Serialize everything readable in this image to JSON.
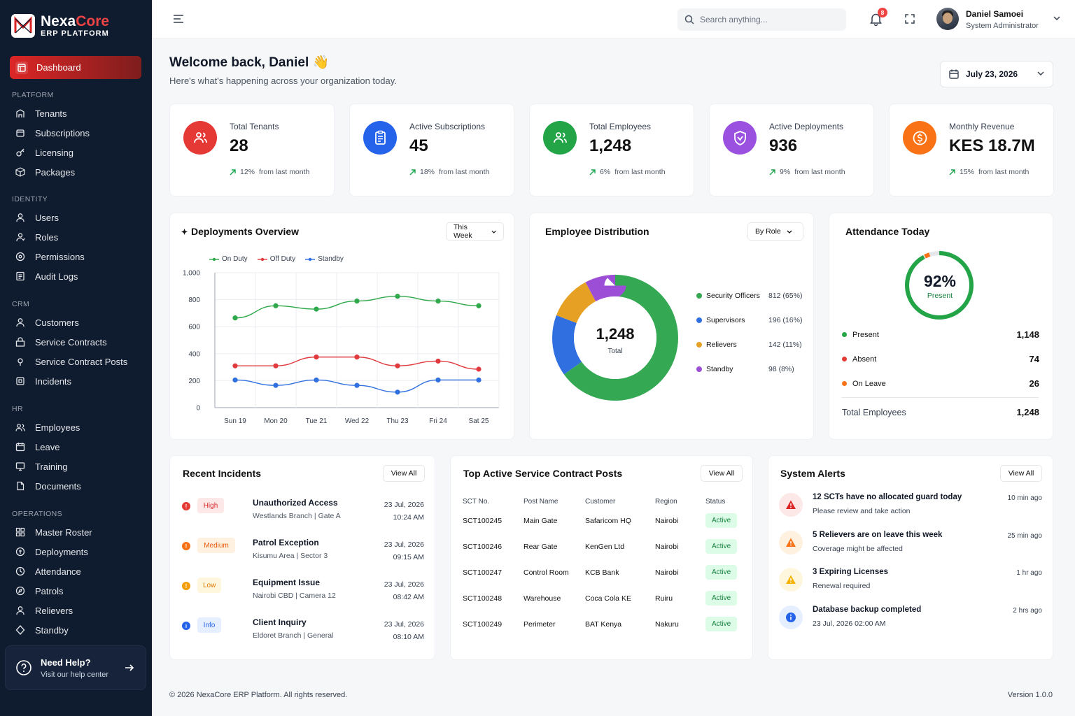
{
  "brand": {
    "name_main": "Nexa",
    "name_accent": "Core",
    "subtitle": "ERP PLATFORM"
  },
  "sidebar": {
    "active": "Dashboard",
    "sections": [
      {
        "label": "PLATFORM",
        "items": [
          "Tenants",
          "Subscriptions",
          "Licensing",
          "Packages"
        ]
      },
      {
        "label": "IDENTITY",
        "items": [
          "Users",
          "Roles",
          "Permissions",
          "Audit Logs"
        ]
      },
      {
        "label": "CRM",
        "items": [
          "Customers",
          "Service Contracts",
          "Service Contract Posts",
          "Incidents"
        ]
      },
      {
        "label": "HR",
        "items": [
          "Employees",
          "Leave",
          "Training",
          "Documents"
        ]
      },
      {
        "label": "OPERATIONS",
        "items": [
          "Master Roster",
          "Deployments",
          "Attendance",
          "Patrols",
          "Relievers",
          "Standby"
        ]
      }
    ],
    "help": {
      "title": "Need Help?",
      "subtitle": "Visit our help center"
    }
  },
  "topbar": {
    "search_placeholder": "Search anything...",
    "notifications": "8",
    "user_name": "Daniel Samoei",
    "user_role": "System Administrator"
  },
  "header": {
    "welcome": "Welcome back, Daniel 👋",
    "subtitle": "Here's what's happening across your organization today.",
    "date": "July 23, 2026"
  },
  "stats": [
    {
      "label": "Total Tenants",
      "value": "28",
      "trend": "12%",
      "trend_text": "from last month",
      "color": "#e53935"
    },
    {
      "label": "Active Subscriptions",
      "value": "45",
      "trend": "18%",
      "trend_text": "from last month",
      "color": "#2563eb"
    },
    {
      "label": "Total Employees",
      "value": "1,248",
      "trend": "6%",
      "trend_text": "from last month",
      "color": "#22a447"
    },
    {
      "label": "Active Deployments",
      "value": "936",
      "trend": "9%",
      "trend_text": "from last month",
      "color": "#9b51e0"
    },
    {
      "label": "Monthly Revenue",
      "value": "KES 18.7M",
      "trend": "15%",
      "trend_text": "from last month",
      "color": "#f97316"
    }
  ],
  "deployments": {
    "title": "Deployments Overview",
    "range": "This Week",
    "chart_data": {
      "type": "line",
      "categories": [
        "Sun 19",
        "Mon 20",
        "Tue 21",
        "Wed 22",
        "Thu 23",
        "Fri 24",
        "Sat 25"
      ],
      "series": [
        {
          "name": "On Duty",
          "color": "#2ea84a",
          "values": [
            665,
            755,
            730,
            790,
            825,
            790,
            755
          ]
        },
        {
          "name": "Off Duty",
          "color": "#e0393e",
          "values": [
            310,
            310,
            375,
            375,
            310,
            345,
            285
          ]
        },
        {
          "name": "Standby",
          "color": "#2f6fe0",
          "values": [
            205,
            165,
            205,
            165,
            115,
            205,
            205
          ]
        }
      ],
      "ylim": [
        0,
        1000
      ],
      "yticks": [
        "0",
        "200",
        "400",
        "600",
        "800",
        "1,000"
      ],
      "grid": true,
      "legend": "top"
    }
  },
  "distribution": {
    "title": "Employee Distribution",
    "filter": "By Role",
    "total": "1,248",
    "total_label": "Total",
    "chart_data": {
      "type": "pie",
      "categories": [
        "Security Officers",
        "Supervisors",
        "Relievers",
        "Standby"
      ],
      "values": [
        812,
        196,
        142,
        98
      ],
      "labels": [
        "812 (65%)",
        "196 (16%)",
        "142 (11%)",
        "98 (8%)"
      ],
      "colors": [
        "#34a853",
        "#2f6fe0",
        "#e6a024",
        "#9c4fd6"
      ]
    }
  },
  "attendance": {
    "title": "Attendance Today",
    "percent": "92%",
    "percent_label": "Present",
    "present_fraction": 0.92,
    "rows": [
      {
        "label": "Present",
        "value": "1,148",
        "color": "#22a447"
      },
      {
        "label": "Absent",
        "value": "74",
        "color": "#e53935"
      },
      {
        "label": "On Leave",
        "value": "26",
        "color": "#f97316"
      }
    ],
    "total_label": "Total Employees",
    "total_value": "1,248"
  },
  "incidents": {
    "title": "Recent Incidents",
    "view_all": "View All",
    "items": [
      {
        "severity": "High",
        "title": "Unauthorized Access",
        "location": "Westlands Branch | Gate A",
        "date": "23 Jul, 2026",
        "time": "10:24 AM"
      },
      {
        "severity": "Medium",
        "title": "Patrol Exception",
        "location": "Kisumu Area | Sector 3",
        "date": "23 Jul, 2026",
        "time": "09:15 AM"
      },
      {
        "severity": "Low",
        "title": "Equipment Issue",
        "location": "Nairobi CBD | Camera 12",
        "date": "23 Jul, 2026",
        "time": "08:42 AM"
      },
      {
        "severity": "Info",
        "title": "Client Inquiry",
        "location": "Eldoret Branch | General",
        "date": "23 Jul, 2026",
        "time": "08:10 AM"
      }
    ]
  },
  "posts": {
    "title": "Top Active Service Contract Posts",
    "view_all": "View All",
    "columns": [
      "SCT No.",
      "Post Name",
      "Customer",
      "Region",
      "Status"
    ],
    "rows": [
      [
        "SCT100245",
        "Main Gate",
        "Safaricom HQ",
        "Nairobi",
        "Active"
      ],
      [
        "SCT100246",
        "Rear Gate",
        "KenGen Ltd",
        "Nairobi",
        "Active"
      ],
      [
        "SCT100247",
        "Control Room",
        "KCB Bank",
        "Nairobi",
        "Active"
      ],
      [
        "SCT100248",
        "Warehouse",
        "Coca Cola KE",
        "Ruiru",
        "Active"
      ],
      [
        "SCT100249",
        "Perimeter",
        "BAT Kenya",
        "Nakuru",
        "Active"
      ]
    ]
  },
  "alerts": {
    "title": "System Alerts",
    "view_all": "View All",
    "items": [
      {
        "title": "12 SCTs have no allocated guard today",
        "sub": "Please review and take action",
        "time": "10 min ago",
        "kind": "danger"
      },
      {
        "title": "5 Relievers are on leave this week",
        "sub": "Coverage might be affected",
        "time": "25 min ago",
        "kind": "warning"
      },
      {
        "title": "3 Expiring Licenses",
        "sub": "Renewal required",
        "time": "1 hr ago",
        "kind": "caution"
      },
      {
        "title": "Database backup completed",
        "sub": "23 Jul, 2026 02:00 AM",
        "time": "2 hrs ago",
        "kind": "info"
      }
    ]
  },
  "footer": {
    "copyright": "© 2026 NexaCore ERP Platform. All rights reserved.",
    "version": "Version 1.0.0"
  }
}
